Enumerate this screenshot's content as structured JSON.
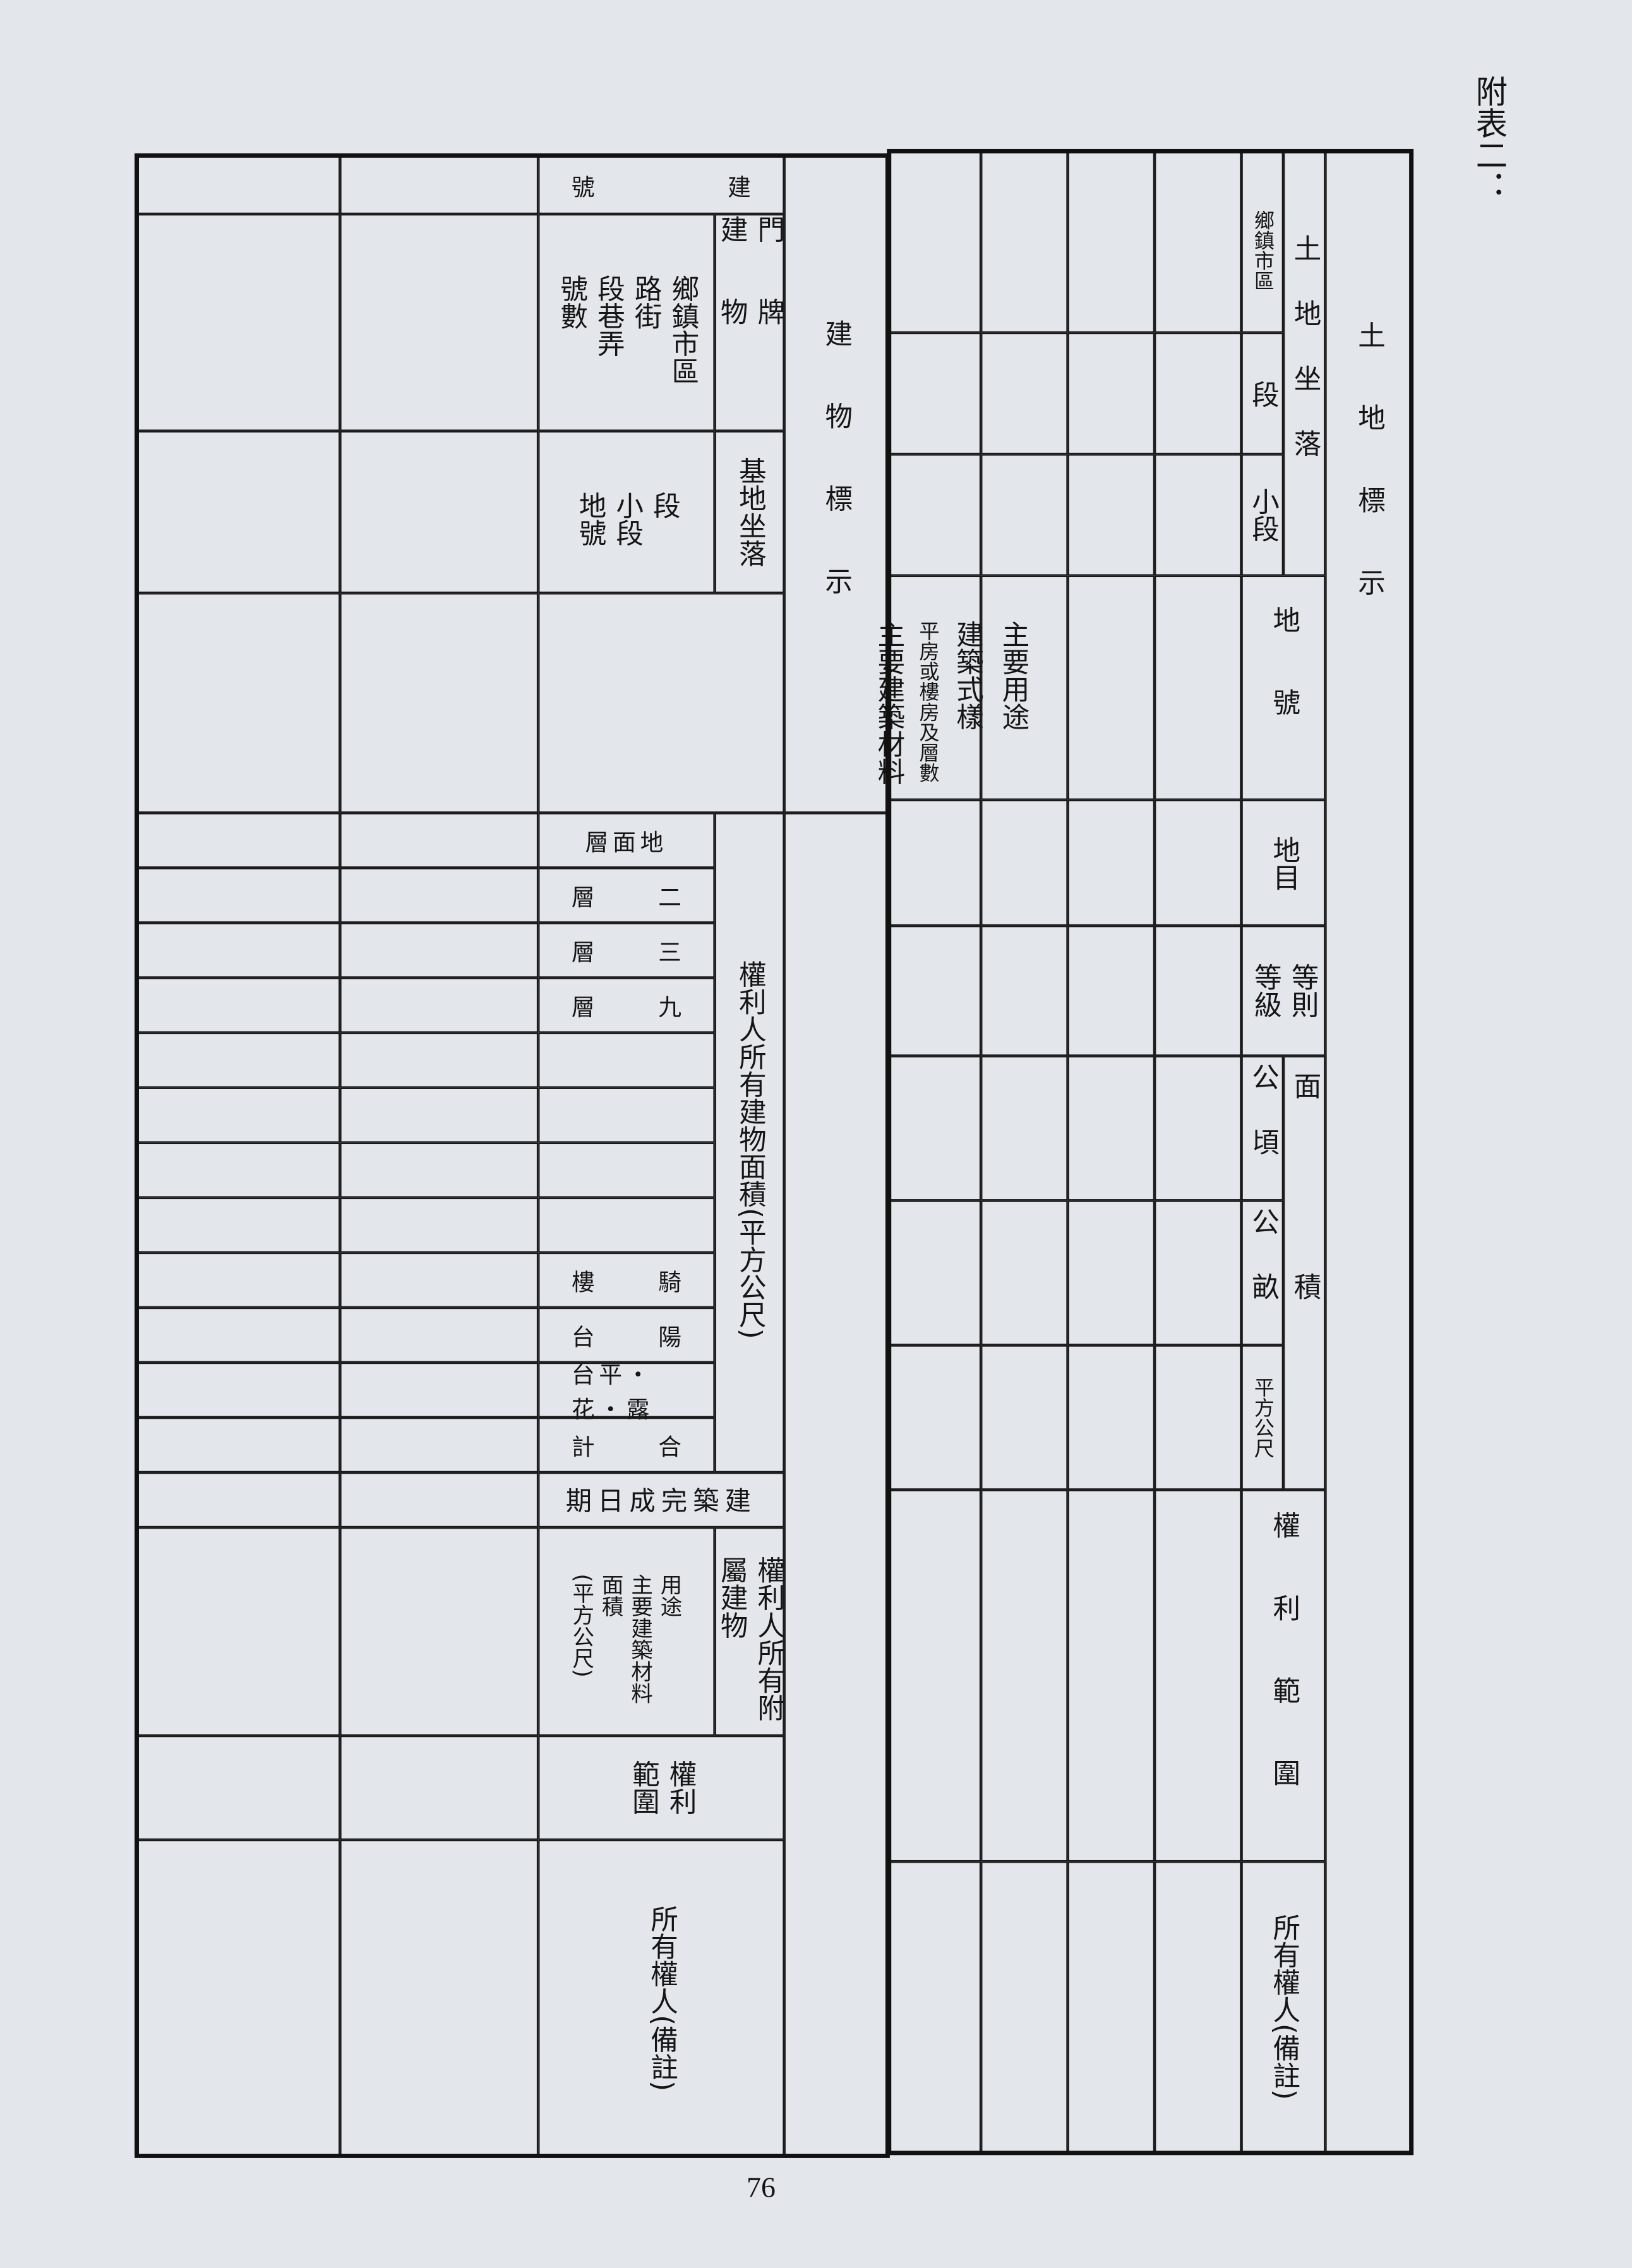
{
  "title": "附表二：",
  "page_number": "76",
  "building_table": {
    "section_label": "建物標示",
    "building_number": {
      "left": "號",
      "right": "建"
    },
    "door_plate_label": "門牌建物",
    "door_plate_fields": "鄉鎮市區\n路街\n段巷弄\n號數",
    "base_location_label": "基地坐落",
    "base_location_fields": "段\n小段\n地號",
    "usage_fields": {
      "col1": "主要用途",
      "col2": "建築式樣",
      "col3": "平房或樓房及層數",
      "col4": "主要建築材料"
    },
    "floor_area_label": "權利人所有建物面積(平方公尺)",
    "floor_rows": [
      {
        "left": "層面地",
        "right": ""
      },
      {
        "left": "層",
        "right": "二"
      },
      {
        "left": "層",
        "right": "三"
      },
      {
        "left": "層",
        "right": "九"
      },
      {
        "left": "",
        "right": ""
      },
      {
        "left": "",
        "right": ""
      },
      {
        "left": "",
        "right": ""
      },
      {
        "left": "",
        "right": ""
      },
      {
        "left": "樓",
        "right": "騎"
      },
      {
        "left": "台",
        "right": "陽"
      },
      {
        "left": "台平・花・露",
        "right": ""
      },
      {
        "left": "計",
        "right": "合"
      }
    ],
    "completion_date": "期日成完築建",
    "attached_label": "權利人所有附\n屬建物",
    "attached_fields": "用途\n主要建築材料\n面積\n(平方公尺)",
    "rights_scope": "權利\n範圍",
    "owner_remarks": "所有權人(備註)"
  },
  "land_table": {
    "section_label": "土地標示",
    "location_label": "土地坐落",
    "district": "鄉鎮市區",
    "section": "段",
    "subsection": "小段",
    "lot_number": "地號",
    "land_category": "地目",
    "grade": "等則\n等級",
    "area_label": "面積",
    "hectare": "公頃",
    "are": "公畝",
    "sqm": "平方公尺",
    "rights_scope": "權利範圍",
    "owner_remarks": "所有權人(備註)"
  }
}
